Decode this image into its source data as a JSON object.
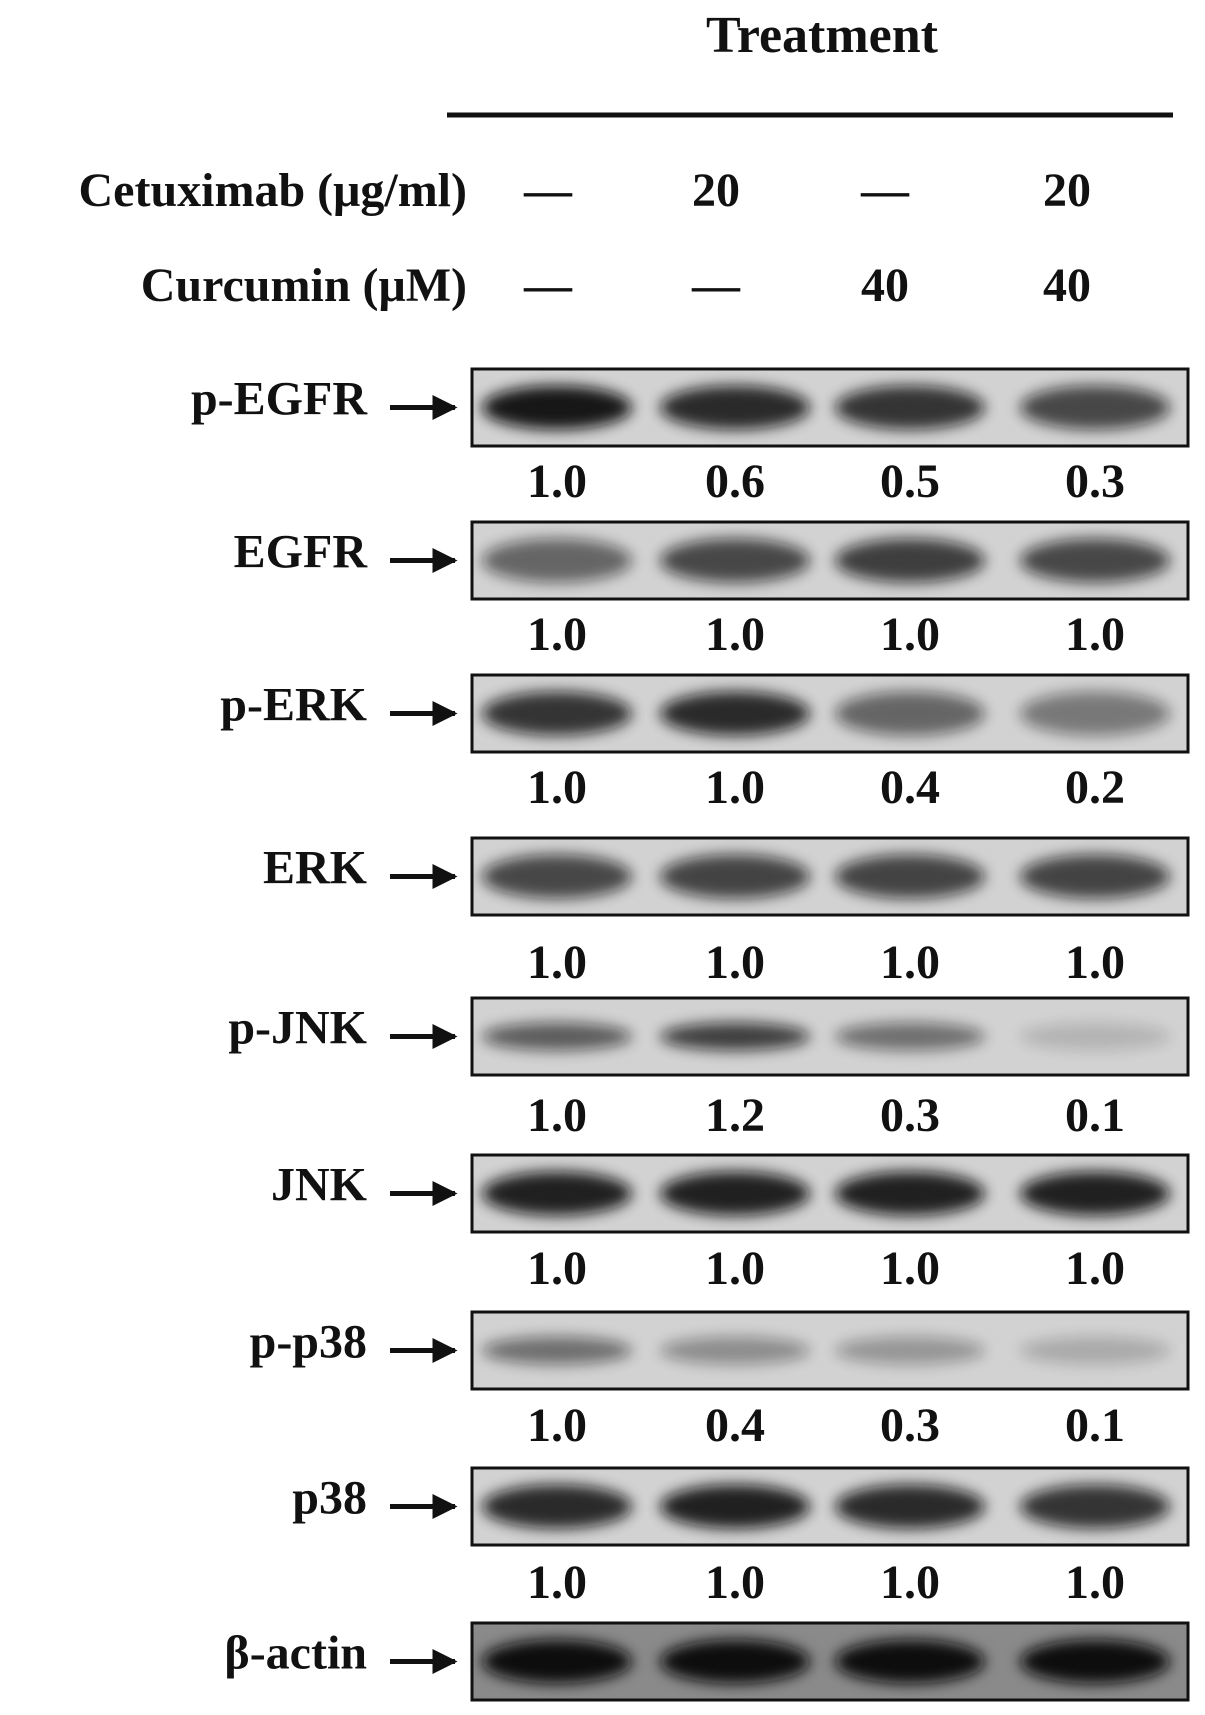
{
  "header": {
    "title": "Treatment"
  },
  "treatments": [
    {
      "label": "Cetuximab (μg/ml)",
      "values": [
        "—",
        "20",
        "—",
        "20"
      ]
    },
    {
      "label": "Curcumin (μM)",
      "values": [
        "—",
        "—",
        "40",
        "40"
      ]
    }
  ],
  "blots": [
    {
      "label": "p-EGFR",
      "quantities": [
        "1.0",
        "0.6",
        "0.5",
        "0.3"
      ]
    },
    {
      "label": "EGFR",
      "quantities": [
        "1.0",
        "1.0",
        "1.0",
        "1.0"
      ]
    },
    {
      "label": "p-ERK",
      "quantities": [
        "1.0",
        "1.0",
        "0.4",
        "0.2"
      ]
    },
    {
      "label": "ERK",
      "quantities": [
        "1.0",
        "1.0",
        "1.0",
        "1.0"
      ]
    },
    {
      "label": "p-JNK",
      "quantities": [
        "1.0",
        "1.2",
        "0.3",
        "0.1"
      ]
    },
    {
      "label": "JNK",
      "quantities": [
        "1.0",
        "1.0",
        "1.0",
        "1.0"
      ]
    },
    {
      "label": "p-p38",
      "quantities": [
        "1.0",
        "0.4",
        "0.3",
        "0.1"
      ]
    },
    {
      "label": "p38",
      "quantities": [
        "1.0",
        "1.0",
        "1.0",
        "1.0"
      ]
    },
    {
      "label": "β-actin"
    }
  ]
}
